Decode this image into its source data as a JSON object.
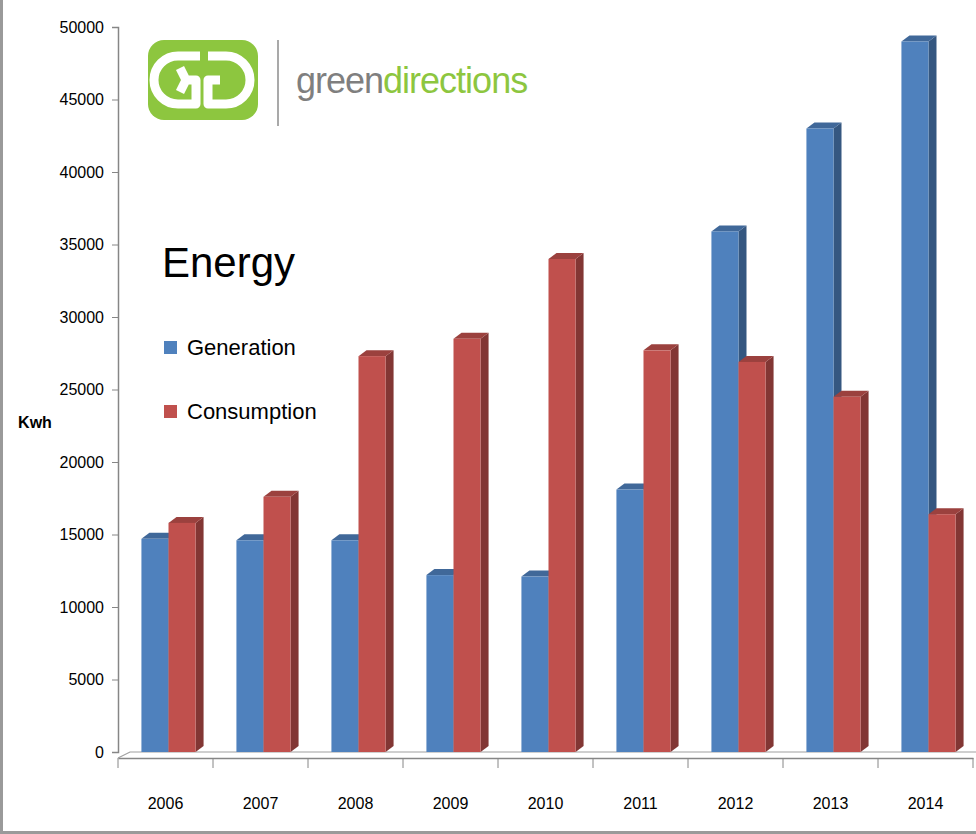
{
  "chart_data": {
    "type": "bar",
    "title": "Energy",
    "y_label": "Kwh",
    "annotations": [
      "green",
      "directions"
    ],
    "categories": [
      "2006",
      "2007",
      "2008",
      "2009",
      "2010",
      "2011",
      "2012",
      "2013",
      "2014"
    ],
    "series": [
      {
        "name": "Generation",
        "color": "#4f81bd",
        "values": [
          14700,
          14600,
          14600,
          12200,
          12100,
          18100,
          35900,
          43000,
          49000
        ]
      },
      {
        "name": "Consumption",
        "color": "#c0504d",
        "values": [
          15800,
          17600,
          27300,
          28500,
          34000,
          27700,
          26900,
          24500,
          16400
        ]
      }
    ],
    "ylim": [
      0,
      50000
    ],
    "yticks": [
      0,
      5000,
      10000,
      15000,
      20000,
      25000,
      30000,
      35000,
      40000,
      45000,
      50000
    ],
    "grid": false,
    "legend": "upper left"
  }
}
